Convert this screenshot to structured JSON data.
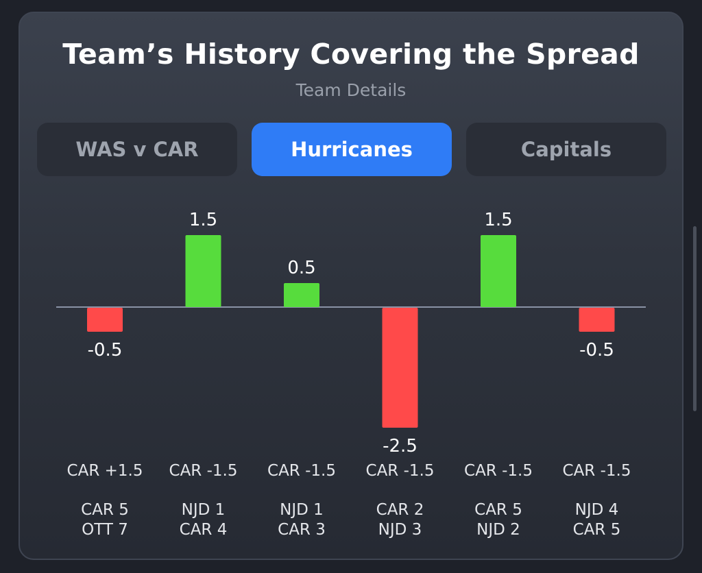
{
  "card": {
    "title": "Team’s History Covering the Spread",
    "subtitle": "Team Details"
  },
  "tabs": [
    {
      "label": "WAS v CAR",
      "active": false
    },
    {
      "label": "Hurricanes",
      "active": true
    },
    {
      "label": "Capitals",
      "active": false
    }
  ],
  "colors": {
    "positive": "#57dc3d",
    "negative": "#ff4a4a",
    "active_tab": "#2f7cf6",
    "baseline": "#8a93a6"
  },
  "chart_data": {
    "type": "bar",
    "categories": [
      {
        "spread": "CAR +1.5",
        "score_line1": "CAR 5",
        "score_line2": "OTT 7"
      },
      {
        "spread": "CAR -1.5",
        "score_line1": "NJD 1",
        "score_line2": "CAR 4"
      },
      {
        "spread": "CAR -1.5",
        "score_line1": "NJD 1",
        "score_line2": "CAR 3"
      },
      {
        "spread": "CAR -1.5",
        "score_line1": "CAR 2",
        "score_line2": "NJD 3"
      },
      {
        "spread": "CAR -1.5",
        "score_line1": "CAR 5",
        "score_line2": "NJD 2"
      },
      {
        "spread": "CAR -1.5",
        "score_line1": "NJD 4",
        "score_line2": "CAR 5"
      }
    ],
    "values": [
      -0.5,
      1.5,
      0.5,
      -2.5,
      1.5,
      -0.5
    ],
    "value_labels": [
      "-0.5",
      "1.5",
      "0.5",
      "-2.5",
      "1.5",
      "-0.5"
    ],
    "ylim": [
      -2.5,
      1.5
    ],
    "grid": false,
    "legend": "none"
  }
}
